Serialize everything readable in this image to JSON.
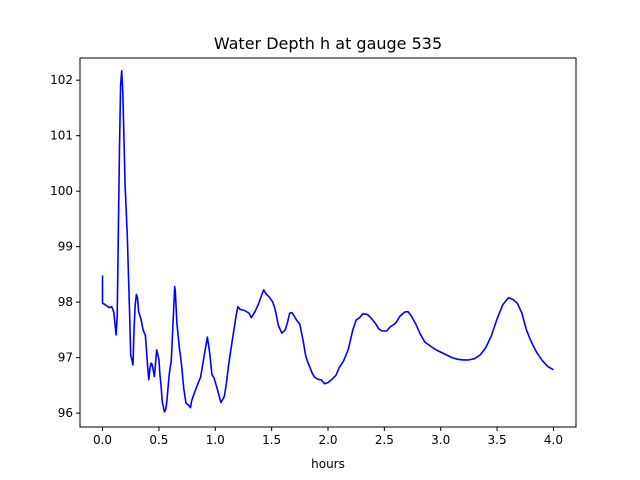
{
  "chart_data": {
    "type": "line",
    "title": "Water Depth h at gauge 535",
    "xlabel": "hours",
    "ylabel": "",
    "xlim": [
      -0.2,
      4.2
    ],
    "ylim": [
      95.75,
      102.4
    ],
    "x_ticks": [
      0.0,
      0.5,
      1.0,
      1.5,
      2.0,
      2.5,
      3.0,
      3.5,
      4.0
    ],
    "x_tick_labels": [
      "0.0",
      "0.5",
      "1.0",
      "1.5",
      "2.0",
      "2.5",
      "3.0",
      "3.5",
      "4.0"
    ],
    "y_ticks": [
      96,
      97,
      98,
      99,
      100,
      101,
      102
    ],
    "y_tick_labels": [
      "96",
      "97",
      "98",
      "99",
      "100",
      "101",
      "102"
    ],
    "grid": false,
    "legend": "none",
    "line_color": "#0000ff",
    "series": [
      {
        "x": [
          0.0,
          0.0,
          0.02,
          0.06,
          0.08,
          0.1,
          0.12,
          0.13,
          0.15,
          0.16,
          0.17,
          0.18,
          0.2,
          0.22,
          0.24,
          0.25,
          0.27,
          0.28,
          0.29,
          0.3,
          0.31,
          0.32,
          0.34,
          0.36,
          0.38,
          0.4,
          0.41,
          0.42,
          0.43,
          0.44,
          0.46,
          0.48,
          0.5,
          0.51,
          0.52,
          0.53,
          0.55,
          0.56,
          0.57,
          0.59,
          0.61,
          0.63,
          0.64,
          0.645,
          0.66,
          0.68,
          0.7,
          0.72,
          0.74,
          0.76,
          0.78,
          0.79,
          0.81,
          0.84,
          0.87,
          0.89,
          0.91,
          0.93,
          0.95,
          0.97,
          0.99,
          1.02,
          1.05,
          1.08,
          1.1,
          1.12,
          1.15,
          1.18,
          1.2,
          1.22,
          1.26,
          1.3,
          1.32,
          1.35,
          1.38,
          1.41,
          1.43,
          1.45,
          1.48,
          1.51,
          1.53,
          1.56,
          1.59,
          1.62,
          1.64,
          1.66,
          1.68,
          1.7,
          1.72,
          1.75,
          1.78,
          1.8,
          1.82,
          1.84,
          1.86,
          1.88,
          1.91,
          1.94,
          1.97,
          2.0,
          2.03,
          2.07,
          2.1,
          2.14,
          2.18,
          2.22,
          2.25,
          2.28,
          2.31,
          2.35,
          2.38,
          2.42,
          2.45,
          2.48,
          2.52,
          2.55,
          2.6,
          2.64,
          2.68,
          2.71,
          2.74,
          2.78,
          2.82,
          2.86,
          2.9,
          2.95,
          3.0,
          3.05,
          3.1,
          3.15,
          3.2,
          3.25,
          3.3,
          3.35,
          3.4,
          3.45,
          3.5,
          3.55,
          3.6,
          3.64,
          3.68,
          3.72,
          3.76,
          3.8,
          3.85,
          3.9,
          3.95,
          4.0
        ],
        "y": [
          98.48,
          97.98,
          97.96,
          97.9,
          97.92,
          97.82,
          97.41,
          97.75,
          100.8,
          101.9,
          102.17,
          101.8,
          100.1,
          99.2,
          97.8,
          97.05,
          96.87,
          97.55,
          97.95,
          98.14,
          98.08,
          97.83,
          97.7,
          97.5,
          97.4,
          96.85,
          96.6,
          96.8,
          96.9,
          96.88,
          96.66,
          97.14,
          96.97,
          96.68,
          96.46,
          96.2,
          96.02,
          96.07,
          96.2,
          96.68,
          96.95,
          97.85,
          98.28,
          98.2,
          97.62,
          97.2,
          96.88,
          96.45,
          96.18,
          96.15,
          96.1,
          96.22,
          96.34,
          96.5,
          96.65,
          96.9,
          97.13,
          97.37,
          97.1,
          96.7,
          96.63,
          96.42,
          96.19,
          96.3,
          96.55,
          96.9,
          97.3,
          97.7,
          97.92,
          97.87,
          97.85,
          97.8,
          97.72,
          97.82,
          97.95,
          98.12,
          98.22,
          98.15,
          98.09,
          98.0,
          97.88,
          97.58,
          97.44,
          97.5,
          97.63,
          97.8,
          97.81,
          97.75,
          97.68,
          97.6,
          97.3,
          97.05,
          96.92,
          96.82,
          96.72,
          96.65,
          96.61,
          96.6,
          96.53,
          96.55,
          96.6,
          96.68,
          96.82,
          96.95,
          97.15,
          97.5,
          97.68,
          97.72,
          97.79,
          97.78,
          97.72,
          97.62,
          97.52,
          97.48,
          97.48,
          97.55,
          97.62,
          97.75,
          97.82,
          97.83,
          97.75,
          97.6,
          97.42,
          97.28,
          97.22,
          97.15,
          97.1,
          97.05,
          97.0,
          96.97,
          96.96,
          96.96,
          96.98,
          97.05,
          97.18,
          97.4,
          97.7,
          97.95,
          98.08,
          98.05,
          97.98,
          97.8,
          97.5,
          97.3,
          97.1,
          96.95,
          96.84,
          96.78
        ]
      }
    ]
  }
}
